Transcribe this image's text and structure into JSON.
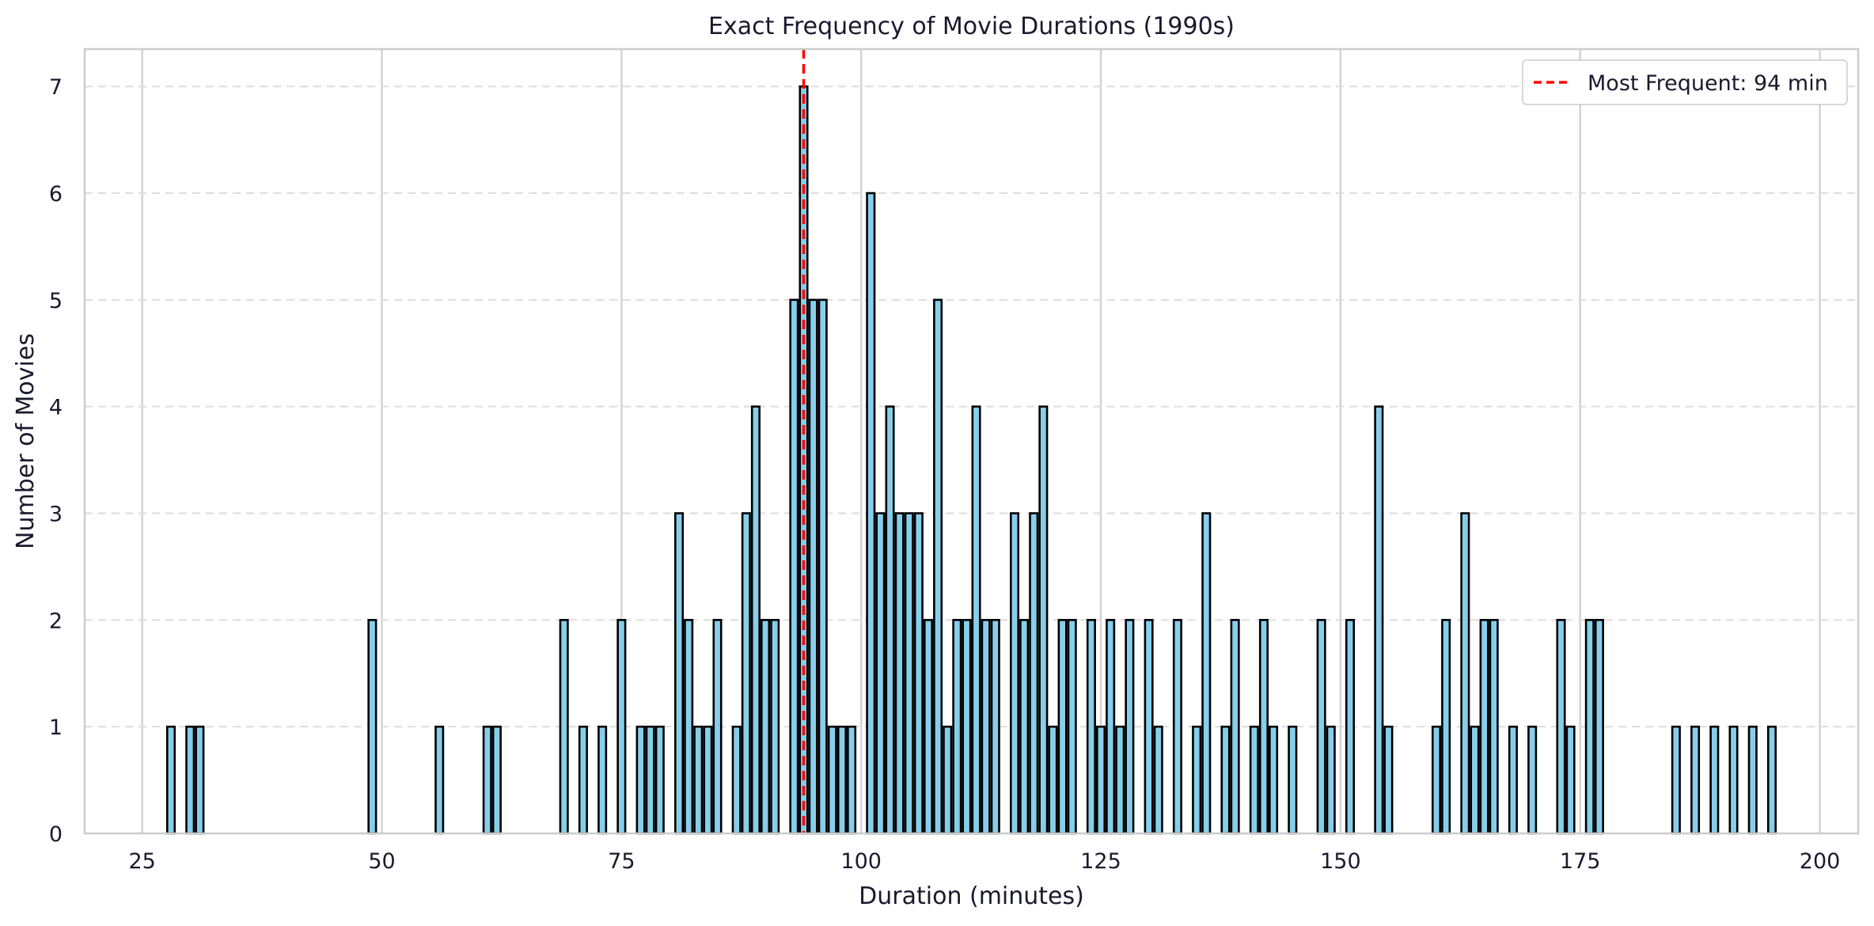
{
  "chart_data": {
    "type": "bar",
    "title": "Exact Frequency of Movie Durations (1990s)",
    "xlabel": "Duration (minutes)",
    "ylabel": "Number of Movies",
    "xlim": [
      19,
      204
    ],
    "ylim": [
      0,
      7.35
    ],
    "xticks": [
      25,
      50,
      75,
      100,
      125,
      150,
      175,
      200
    ],
    "yticks": [
      0,
      1,
      2,
      3,
      4,
      5,
      6,
      7
    ],
    "grid": true,
    "legend_position": "top-right",
    "bar_color": "#87ceeb",
    "bar_edge_color": "#000000",
    "marker_color": "#ff0000",
    "series": [
      {
        "values": [
          [
            28,
            1
          ],
          [
            30,
            1
          ],
          [
            31,
            1
          ],
          [
            49,
            2
          ],
          [
            56,
            1
          ],
          [
            61,
            1
          ],
          [
            62,
            1
          ],
          [
            69,
            2
          ],
          [
            71,
            1
          ],
          [
            73,
            1
          ],
          [
            75,
            2
          ],
          [
            77,
            1
          ],
          [
            78,
            1
          ],
          [
            79,
            1
          ],
          [
            81,
            3
          ],
          [
            82,
            2
          ],
          [
            83,
            1
          ],
          [
            84,
            1
          ],
          [
            85,
            2
          ],
          [
            87,
            1
          ],
          [
            88,
            3
          ],
          [
            89,
            4
          ],
          [
            90,
            2
          ],
          [
            91,
            2
          ],
          [
            93,
            5
          ],
          [
            94,
            7
          ],
          [
            95,
            5
          ],
          [
            96,
            5
          ],
          [
            97,
            1
          ],
          [
            98,
            1
          ],
          [
            99,
            1
          ],
          [
            101,
            6
          ],
          [
            102,
            3
          ],
          [
            103,
            4
          ],
          [
            104,
            3
          ],
          [
            105,
            3
          ],
          [
            106,
            3
          ],
          [
            107,
            2
          ],
          [
            108,
            5
          ],
          [
            109,
            1
          ],
          [
            110,
            2
          ],
          [
            111,
            2
          ],
          [
            112,
            4
          ],
          [
            113,
            2
          ],
          [
            114,
            2
          ],
          [
            116,
            3
          ],
          [
            117,
            2
          ],
          [
            118,
            3
          ],
          [
            119,
            4
          ],
          [
            120,
            1
          ],
          [
            121,
            2
          ],
          [
            122,
            2
          ],
          [
            124,
            2
          ],
          [
            125,
            1
          ],
          [
            126,
            2
          ],
          [
            127,
            1
          ],
          [
            128,
            2
          ],
          [
            130,
            2
          ],
          [
            131,
            1
          ],
          [
            133,
            2
          ],
          [
            135,
            1
          ],
          [
            136,
            3
          ],
          [
            138,
            1
          ],
          [
            139,
            2
          ],
          [
            141,
            1
          ],
          [
            142,
            2
          ],
          [
            143,
            1
          ],
          [
            145,
            1
          ],
          [
            148,
            2
          ],
          [
            149,
            1
          ],
          [
            151,
            2
          ],
          [
            154,
            4
          ],
          [
            155,
            1
          ],
          [
            160,
            1
          ],
          [
            161,
            2
          ],
          [
            163,
            3
          ],
          [
            164,
            1
          ],
          [
            165,
            2
          ],
          [
            166,
            2
          ],
          [
            168,
            1
          ],
          [
            170,
            1
          ],
          [
            173,
            2
          ],
          [
            174,
            1
          ],
          [
            176,
            2
          ],
          [
            177,
            2
          ],
          [
            185,
            1
          ],
          [
            187,
            1
          ],
          [
            189,
            1
          ],
          [
            191,
            1
          ],
          [
            193,
            1
          ],
          [
            195,
            1
          ]
        ]
      }
    ],
    "reference_line": {
      "x": 94,
      "label": "Most Frequent: 94 min"
    }
  }
}
